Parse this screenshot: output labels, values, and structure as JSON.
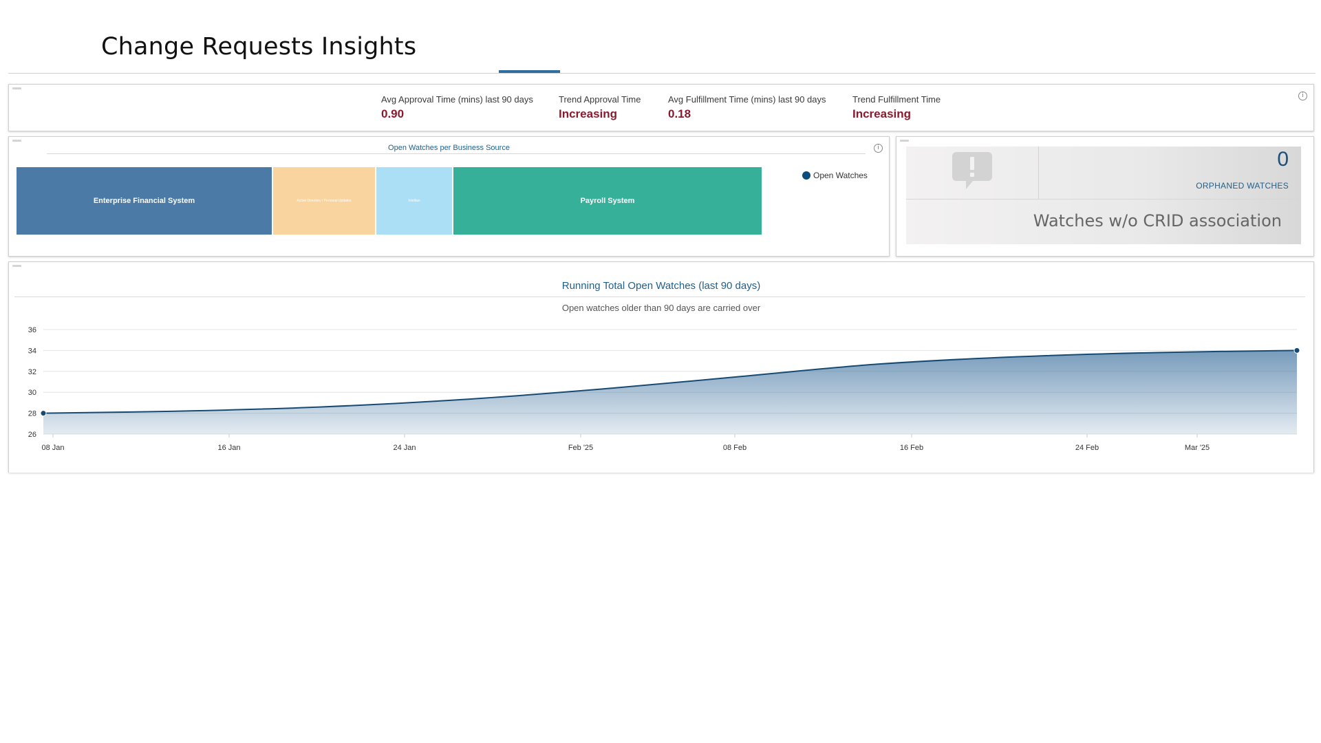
{
  "page": {
    "title": "Change Requests Insights"
  },
  "kpis": [
    {
      "label": "Avg Approval Time (mins) last 90 days",
      "value": "0.90"
    },
    {
      "label": "Trend Approval Time",
      "value": "Increasing"
    },
    {
      "label": "Avg Fulfillment Time (mins) last 90 days",
      "value": "0.18"
    },
    {
      "label": "Trend Fulfillment Time",
      "value": "Increasing"
    }
  ],
  "treemap": {
    "title": "Open Watches per Business Source",
    "legend": "Open Watches",
    "blocks": [
      {
        "label": "Enterprise Financial System",
        "color": "#4a7aa5"
      },
      {
        "label": "Active Directory / Personal Updates",
        "color": "#f9d49e"
      },
      {
        "label": "Intellian",
        "color": "#abdff5"
      },
      {
        "label": "Payroll System",
        "color": "#37b09a"
      }
    ]
  },
  "orphaned": {
    "count": "0",
    "label": "ORPHANED WATCHES",
    "caption": "Watches w/o CRID association",
    "icon": "alert-message-icon"
  },
  "running_total": {
    "title": "Running Total Open Watches (last 90 days)",
    "subtitle": "Open watches older than 90 days are carried over"
  },
  "chart_data": {
    "type": "area",
    "title": "Running Total Open Watches (last 90 days)",
    "subtitle": "Open watches older than 90 days are carried over",
    "x": [
      "2025-01-05",
      "2025-01-12",
      "2025-01-19",
      "2025-01-26",
      "2025-02-02",
      "2025-02-09",
      "2025-02-16",
      "2025-02-23",
      "2025-03-02",
      "2025-03-09"
    ],
    "series": [
      {
        "values": [
          28,
          28.2,
          28.6,
          29.3,
          30.3,
          31.5,
          32.7,
          33.4,
          33.8,
          34
        ]
      }
    ],
    "x_ticks": [
      "08 Jan",
      "16 Jan",
      "24 Jan",
      "Feb '25",
      "08 Feb",
      "16 Feb",
      "24 Feb",
      "Mar '25"
    ],
    "y_ticks": [
      26,
      28,
      30,
      32,
      34,
      36
    ],
    "ylim": [
      26,
      36
    ],
    "grid": true,
    "line_color": "#174a73",
    "fill_color": "#4a7aa5"
  }
}
